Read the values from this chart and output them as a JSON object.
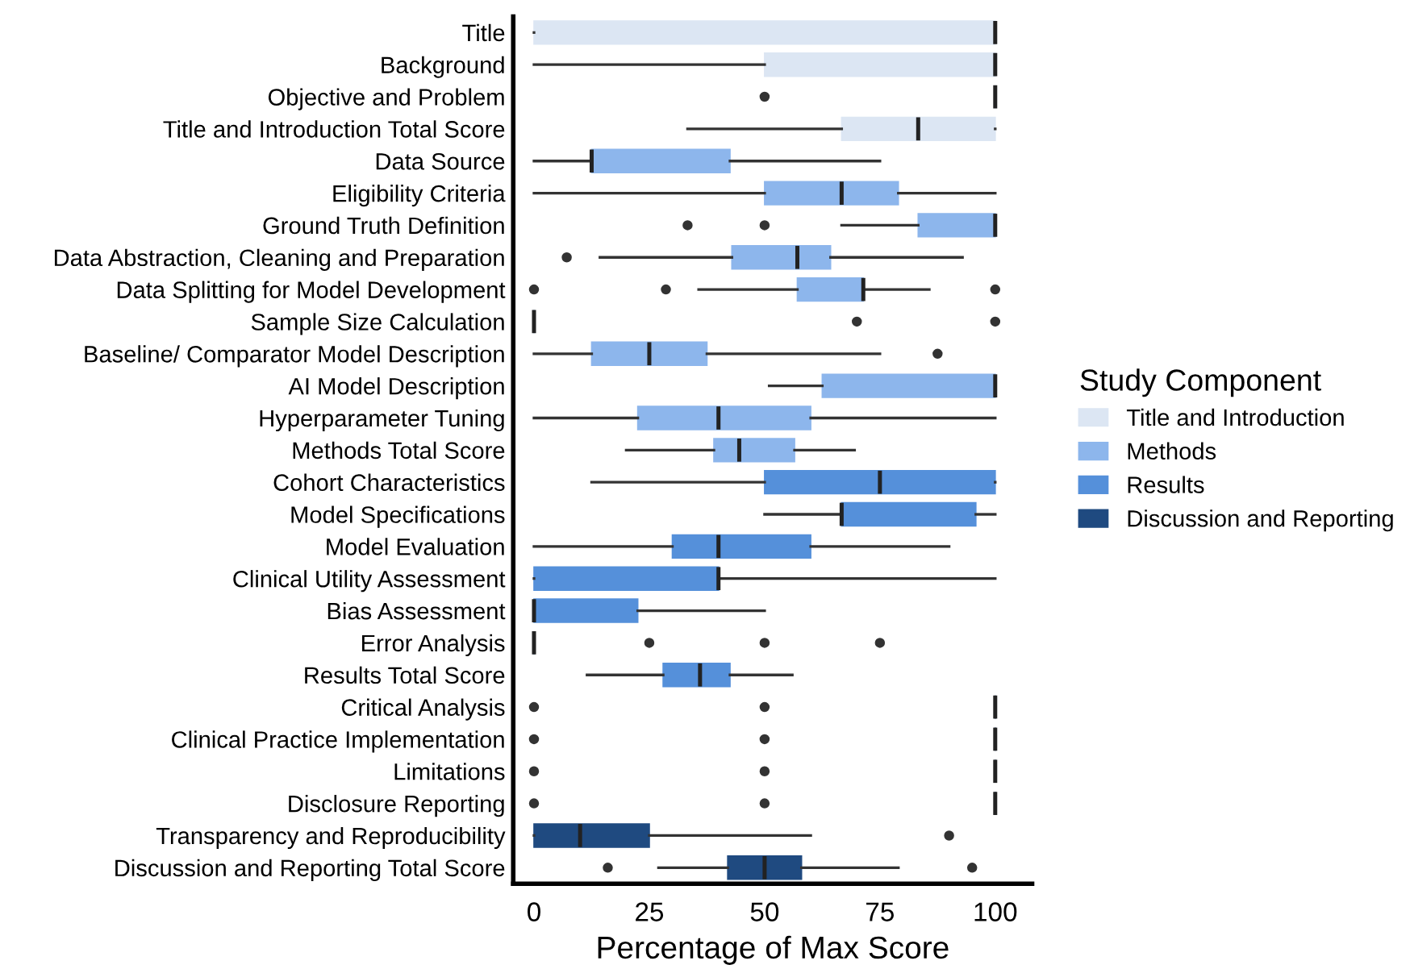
{
  "chart_data": {
    "type": "box",
    "orientation": "horizontal",
    "xlabel": "Percentage of Max Score",
    "legend_title": "Study Component",
    "legend": "right",
    "grid": false,
    "categories": [
      "Title",
      "Background",
      "Objective and Problem",
      "Title and Introduction Total Score",
      "Data Source",
      "Eligibility Criteria",
      "Ground Truth Definition",
      "Data Abstraction, Cleaning and Preparation",
      "Data Splitting for Model Development",
      "Sample Size Calculation",
      "Baseline/ Comparator Model Description",
      "AI Model Description",
      "Hyperparameter Tuning",
      "Methods Total Score",
      "Cohort Characteristics",
      "Model Specifications",
      "Model Evaluation",
      "Clinical Utility Assessment",
      "Bias Assessment",
      "Error Analysis",
      "Results Total Score",
      "Critical Analysis",
      "Clinical Practice Implementation",
      "Limitations",
      "Disclosure Reporting",
      "Transparency and Reproducibility",
      "Discussion and Reporting Total Score"
    ],
    "xlim": [
      -4.5,
      108
    ],
    "xticks": [
      0,
      25,
      50,
      75,
      100
    ],
    "series": [
      {
        "name": "Title and Introduction",
        "color": "#dce6f3",
        "boxes": [
          {
            "low": 0,
            "q1": 0,
            "median": 100,
            "q3": 100,
            "high": 100
          },
          {
            "low": 0,
            "q1": 50,
            "median": 100,
            "q3": 100,
            "high": 100
          },
          {
            "low": 100,
            "q1": 100,
            "median": 100,
            "q3": 100,
            "high": 100,
            "outliers": [
              50
            ]
          },
          {
            "low": 33.3,
            "q1": 66.7,
            "median": 83.3,
            "q3": 100,
            "high": 100
          },
          null,
          null,
          null,
          null,
          null,
          null,
          null,
          null,
          null,
          null,
          null,
          null,
          null,
          null,
          null,
          null,
          null,
          null,
          null,
          null,
          null,
          null,
          null
        ]
      },
      {
        "name": "Methods",
        "color": "#8db6ec",
        "boxes": [
          null,
          null,
          null,
          null,
          {
            "low": 0,
            "q1": 12.5,
            "median": 12.5,
            "q3": 42.5,
            "high": 75
          },
          {
            "low": 0,
            "q1": 50,
            "median": 66.7,
            "q3": 79,
            "high": 100
          },
          {
            "low": 66.7,
            "q1": 83.3,
            "median": 100,
            "q3": 100,
            "high": 100,
            "outliers": [
              33.3,
              50
            ]
          },
          {
            "low": 14.3,
            "q1": 42.9,
            "median": 57.1,
            "q3": 64.3,
            "high": 92.9,
            "outliers": [
              7.1
            ]
          },
          {
            "low": 35.7,
            "q1": 57.1,
            "median": 71.4,
            "q3": 71.4,
            "high": 85.7,
            "outliers": [
              0,
              28.6,
              100
            ]
          },
          {
            "low": 0,
            "q1": 0,
            "median": 0,
            "q3": 0,
            "high": 0,
            "outliers": [
              70,
              100
            ]
          },
          {
            "low": 0,
            "q1": 12.5,
            "median": 25,
            "q3": 37.5,
            "high": 75,
            "outliers": [
              87.5
            ]
          },
          {
            "low": 51,
            "q1": 62.5,
            "median": 100,
            "q3": 100,
            "high": 100
          },
          {
            "low": 0,
            "q1": 22.5,
            "median": 40,
            "q3": 60,
            "high": 100
          },
          {
            "low": 20,
            "q1": 39,
            "median": 44.5,
            "q3": 56.5,
            "high": 69.5
          },
          null,
          null,
          null,
          null,
          null,
          null,
          null,
          null,
          null,
          null,
          null,
          null,
          null
        ]
      },
      {
        "name": "Results",
        "color": "#5590da",
        "boxes": [
          null,
          null,
          null,
          null,
          null,
          null,
          null,
          null,
          null,
          null,
          null,
          null,
          null,
          null,
          {
            "low": 12.5,
            "q1": 50,
            "median": 75,
            "q3": 100,
            "high": 100
          },
          {
            "low": 50,
            "q1": 66.7,
            "median": 66.7,
            "q3": 95.8,
            "high": 100
          },
          {
            "low": 0,
            "q1": 30,
            "median": 40,
            "q3": 60,
            "high": 90
          },
          {
            "low": 0,
            "q1": 0,
            "median": 40,
            "q3": 40,
            "high": 100
          },
          {
            "low": 0,
            "q1": 0,
            "median": 0,
            "q3": 22.5,
            "high": 50
          },
          {
            "low": 0,
            "q1": 0,
            "median": 0,
            "q3": 0,
            "high": 0,
            "outliers": [
              25,
              50,
              75
            ]
          },
          {
            "low": 11.5,
            "q1": 28,
            "median": 36,
            "q3": 42.5,
            "high": 56
          },
          null,
          null,
          null,
          null,
          null,
          null
        ]
      },
      {
        "name": "Discussion and Reporting",
        "color": "#1f4a80",
        "boxes": [
          null,
          null,
          null,
          null,
          null,
          null,
          null,
          null,
          null,
          null,
          null,
          null,
          null,
          null,
          null,
          null,
          null,
          null,
          null,
          null,
          null,
          {
            "low": 100,
            "q1": 100,
            "median": 100,
            "q3": 100,
            "high": 100,
            "outliers": [
              0,
              50
            ]
          },
          {
            "low": 100,
            "q1": 100,
            "median": 100,
            "q3": 100,
            "high": 100,
            "outliers": [
              0,
              50
            ]
          },
          {
            "low": 100,
            "q1": 100,
            "median": 100,
            "q3": 100,
            "high": 100,
            "outliers": [
              0,
              50
            ]
          },
          {
            "low": 100,
            "q1": 100,
            "median": 100,
            "q3": 100,
            "high": 100,
            "outliers": [
              0,
              50
            ]
          },
          {
            "low": 0,
            "q1": 0,
            "median": 10,
            "q3": 25,
            "high": 60,
            "outliers": [
              90
            ]
          },
          {
            "low": 27,
            "q1": 42,
            "median": 50,
            "q3": 58,
            "high": 79,
            "outliers": [
              16,
              95
            ]
          }
        ]
      }
    ]
  }
}
